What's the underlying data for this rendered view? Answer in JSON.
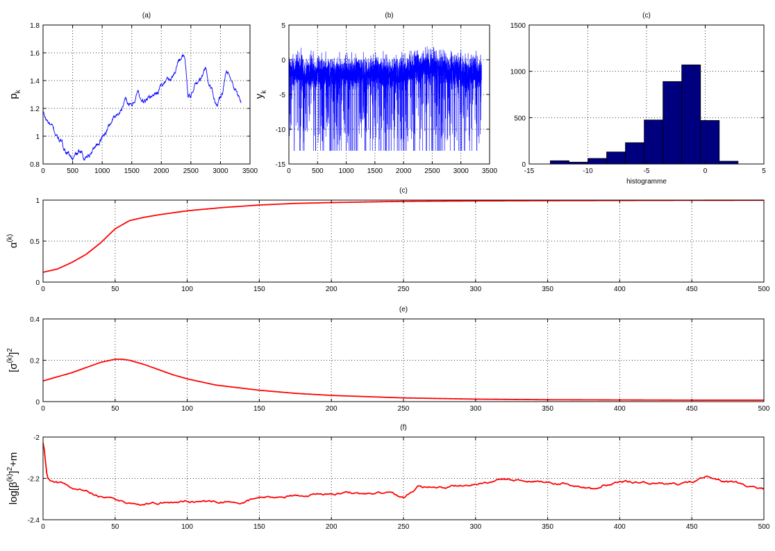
{
  "chart_data": [
    {
      "id": "a",
      "type": "line",
      "title": "(a)",
      "xlabel": "",
      "ylabel": "p",
      "ylabel_sub": "k",
      "xlim": [
        0,
        3500
      ],
      "ylim": [
        0.8,
        1.8
      ],
      "xticks": [
        0,
        500,
        1000,
        1500,
        2000,
        2500,
        3000,
        3500
      ],
      "yticks": [
        0.8,
        1,
        1.2,
        1.4,
        1.6,
        1.8
      ],
      "grid": true,
      "color": "#0000ff",
      "noise": 0.012,
      "series": [
        {
          "x": [
            0,
            50,
            150,
            250,
            350,
            450,
            500,
            600,
            700,
            800,
            900,
            1000,
            1100,
            1200,
            1300,
            1400,
            1500,
            1600,
            1700,
            1800,
            1900,
            2000,
            2100,
            2200,
            2300,
            2350,
            2400,
            2450,
            2500,
            2550,
            2600,
            2700,
            2750,
            2800,
            2850,
            2900,
            2950,
            3000,
            3050,
            3100,
            3150,
            3200,
            3250,
            3300,
            3350
          ],
          "y": [
            1.17,
            1.12,
            1.06,
            0.99,
            0.92,
            0.86,
            0.83,
            0.88,
            0.85,
            0.88,
            0.94,
            0.99,
            1.06,
            1.14,
            1.19,
            1.25,
            1.21,
            1.32,
            1.24,
            1.28,
            1.31,
            1.36,
            1.41,
            1.43,
            1.56,
            1.58,
            1.55,
            1.3,
            1.27,
            1.36,
            1.38,
            1.43,
            1.49,
            1.38,
            1.34,
            1.27,
            1.22,
            1.29,
            1.35,
            1.46,
            1.42,
            1.36,
            1.32,
            1.3,
            1.24
          ]
        }
      ]
    },
    {
      "id": "b",
      "type": "line",
      "title": "(b)",
      "xlabel": "",
      "ylabel": "y",
      "ylabel_sub": "k",
      "xlim": [
        0,
        3500
      ],
      "ylim": [
        -15,
        5
      ],
      "xticks": [
        0,
        500,
        1000,
        1500,
        2000,
        2500,
        3000,
        3500
      ],
      "yticks": [
        -15,
        -10,
        -5,
        0,
        5
      ],
      "grid": true,
      "color": "#0000ff",
      "signal": {
        "n_points": 3360,
        "x_max": 3360,
        "floor": -13.1,
        "center_x": [
          0,
          500,
          1000,
          1500,
          2000,
          2200,
          2500,
          2800,
          3000,
          3360
        ],
        "center_y": [
          -2.0,
          -2.2,
          -2.3,
          -2.1,
          -2.4,
          -1.6,
          -1.2,
          -1.8,
          -2.0,
          -2.1
        ]
      }
    },
    {
      "id": "c_hist",
      "type": "bar",
      "title": "(c)",
      "xlabel": "histogramme",
      "ylabel": "",
      "xlim": [
        -15,
        5
      ],
      "ylim": [
        0,
        1500
      ],
      "xticks": [
        -15,
        -10,
        -5,
        0,
        5
      ],
      "yticks": [
        0,
        500,
        1000,
        1500
      ],
      "grid": true,
      "color": "#00007f",
      "bin_edges": [
        -13.2,
        -11.6,
        -10.0,
        -8.4,
        -6.8,
        -5.2,
        -3.6,
        -2.0,
        -0.4,
        1.2,
        2.8
      ],
      "values": [
        35,
        20,
        60,
        130,
        230,
        475,
        890,
        1070,
        470,
        30
      ]
    },
    {
      "id": "d",
      "type": "line",
      "title": "(c)",
      "xlabel": "",
      "ylabel": "α",
      "ylabel_sup": "(k)",
      "xlim": [
        0,
        500
      ],
      "ylim": [
        0,
        1
      ],
      "xticks": [
        0,
        50,
        100,
        150,
        200,
        250,
        300,
        350,
        400,
        450,
        500
      ],
      "yticks": [
        0,
        0.5,
        1
      ],
      "grid": true,
      "color": "#ff0000",
      "noise": 0.0,
      "series": [
        {
          "x": [
            0,
            10,
            20,
            30,
            40,
            50,
            60,
            70,
            80,
            100,
            125,
            150,
            175,
            200,
            250,
            300,
            350,
            400,
            450,
            500
          ],
          "y": [
            0.12,
            0.16,
            0.24,
            0.34,
            0.48,
            0.65,
            0.75,
            0.79,
            0.82,
            0.87,
            0.91,
            0.94,
            0.96,
            0.97,
            0.985,
            0.99,
            0.993,
            0.995,
            0.997,
            0.998
          ]
        }
      ]
    },
    {
      "id": "e",
      "type": "line",
      "title": "(e)",
      "xlabel": "",
      "ylabel": "[σ",
      "ylabel_sup": "(k)",
      "ylabel_tail": "]",
      "ylabel_tail_sup": "2",
      "xlim": [
        0,
        500
      ],
      "ylim": [
        0,
        0.4
      ],
      "xticks": [
        0,
        50,
        100,
        150,
        200,
        250,
        300,
        350,
        400,
        450,
        500
      ],
      "yticks": [
        0,
        0.2,
        0.4
      ],
      "grid": true,
      "color": "#ff0000",
      "noise": 0.0,
      "series": [
        {
          "x": [
            0,
            10,
            20,
            30,
            40,
            50,
            55,
            60,
            70,
            80,
            90,
            100,
            120,
            150,
            175,
            200,
            250,
            300,
            350,
            400,
            450,
            500
          ],
          "y": [
            0.1,
            0.12,
            0.14,
            0.165,
            0.19,
            0.205,
            0.205,
            0.2,
            0.18,
            0.155,
            0.13,
            0.11,
            0.08,
            0.055,
            0.04,
            0.03,
            0.018,
            0.012,
            0.009,
            0.008,
            0.007,
            0.007
          ]
        }
      ]
    },
    {
      "id": "f",
      "type": "line",
      "title": "(f)",
      "xlabel": "",
      "ylabel": "log[β",
      "ylabel_sup": "(k)",
      "ylabel_tail": "]",
      "ylabel_tail_sup": "2",
      "ylabel_end": "+m",
      "xlim": [
        0,
        500
      ],
      "ylim": [
        -2.4,
        -2
      ],
      "xticks": [
        0,
        50,
        100,
        150,
        200,
        250,
        300,
        350,
        400,
        450,
        500
      ],
      "yticks": [
        -2.4,
        -2.2,
        -2
      ],
      "grid": true,
      "color": "#ff0000",
      "noise": 0.004,
      "series": [
        {
          "x": [
            0,
            1,
            2,
            3,
            5,
            10,
            20,
            30,
            40,
            50,
            60,
            70,
            80,
            100,
            120,
            140,
            150,
            160,
            180,
            200,
            220,
            240,
            250,
            260,
            280,
            300,
            310,
            320,
            340,
            360,
            380,
            400,
            420,
            440,
            460,
            480,
            500
          ],
          "y": [
            -2.03,
            -2.07,
            -2.15,
            -2.2,
            -2.21,
            -2.22,
            -2.24,
            -2.26,
            -2.29,
            -2.31,
            -2.325,
            -2.325,
            -2.322,
            -2.31,
            -2.315,
            -2.31,
            -2.29,
            -2.295,
            -2.28,
            -2.275,
            -2.275,
            -2.27,
            -2.295,
            -2.24,
            -2.245,
            -2.225,
            -2.215,
            -2.205,
            -2.215,
            -2.22,
            -2.25,
            -2.21,
            -2.225,
            -2.23,
            -2.2,
            -2.22,
            -2.25
          ]
        }
      ]
    }
  ]
}
